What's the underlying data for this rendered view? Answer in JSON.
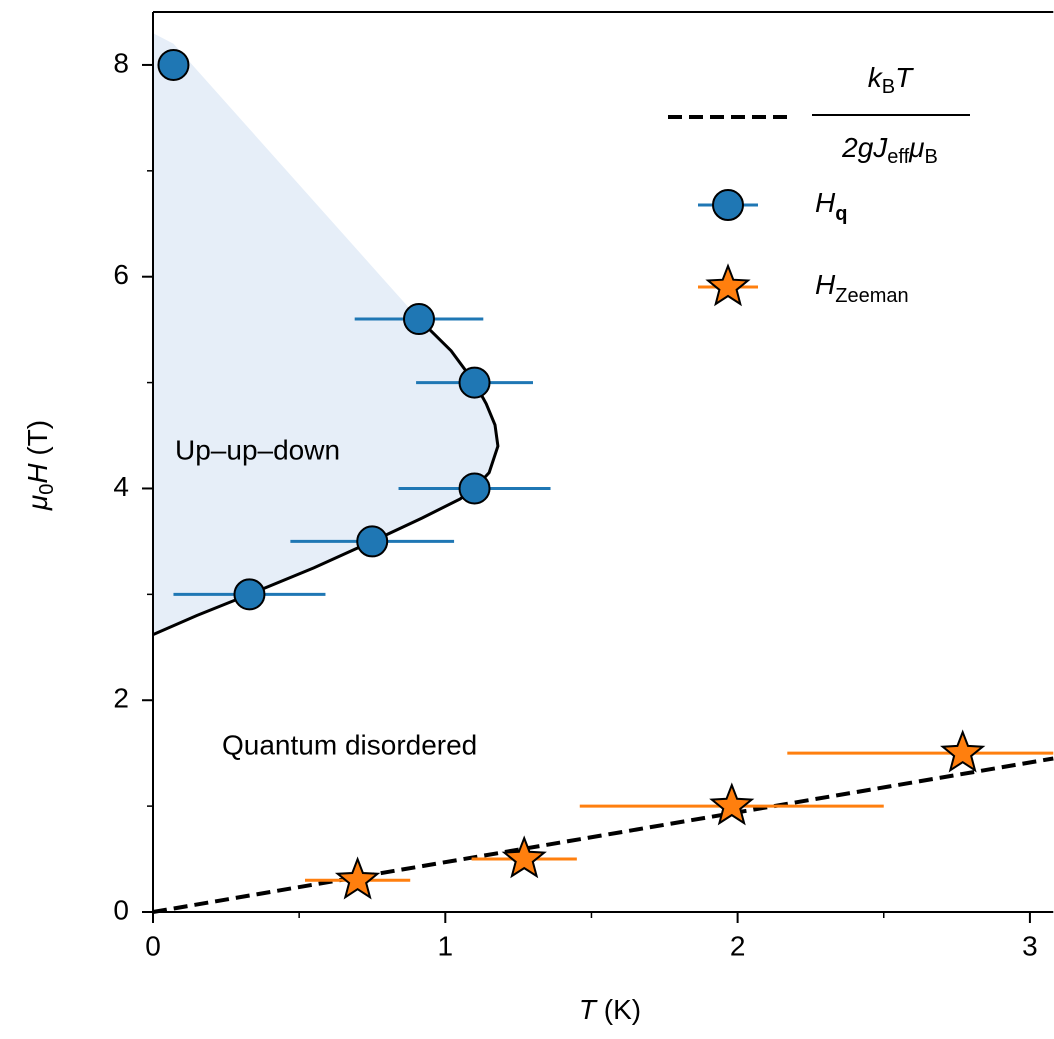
{
  "chart_data": {
    "type": "scatter",
    "xlabel": {
      "main": "T",
      "unit": "(K)"
    },
    "ylabel": {
      "main1": "μ",
      "sub": "0",
      "main2": "H",
      "unit": "(T)"
    },
    "xlim": [
      0,
      3.08
    ],
    "ylim": [
      0,
      8.5
    ],
    "xticks": [
      0,
      1,
      2,
      3
    ],
    "yticks": [
      0,
      2,
      4,
      6,
      8
    ],
    "xminorticks": [
      0.5,
      1.5,
      2.5
    ],
    "yminorticks": [
      1,
      3,
      5,
      7
    ],
    "annotations": [
      "Up–up–down",
      "Quantum disordered"
    ],
    "shade_color": "#e6eef8",
    "boundary": {
      "color": "#000000",
      "x": [
        0,
        0.15,
        0.33,
        0.55,
        0.75,
        0.92,
        1.05,
        1.1,
        1.15,
        1.18,
        1.17,
        1.14,
        1.1,
        1.02,
        0.91
      ],
      "values": [
        2.62,
        2.8,
        3.0,
        3.25,
        3.5,
        3.72,
        3.9,
        4.0,
        4.15,
        4.4,
        4.6,
        4.8,
        5.0,
        5.3,
        5.6
      ]
    },
    "series": [
      {
        "name": {
          "numerator": [
            "k",
            "B",
            "T"
          ],
          "denominator": [
            "2g",
            "J",
            "eff",
            "μ",
            "B"
          ]
        },
        "kind": "dashed-line",
        "color": "#000000",
        "x": [
          0,
          3.08
        ],
        "values": [
          0,
          1.45
        ]
      },
      {
        "name": {
          "main": "H",
          "sub": "q"
        },
        "kind": "circle",
        "color": "#1f77b4",
        "x": [
          0.07,
          0.91,
          1.1,
          1.1,
          0.75,
          0.33
        ],
        "values": [
          8.0,
          5.6,
          5.0,
          4.0,
          3.5,
          3.0
        ],
        "xerr": [
          null,
          0.22,
          0.2,
          0.26,
          0.28,
          0.26
        ]
      },
      {
        "name": {
          "main": "H",
          "sub": "Zeeman"
        },
        "kind": "star",
        "color": "#ff7f0e",
        "x": [
          0.7,
          1.27,
          1.98,
          2.77
        ],
        "values": [
          0.3,
          0.5,
          1.0,
          1.5
        ],
        "xerr": [
          0.18,
          0.18,
          0.52,
          0.6
        ]
      }
    ]
  }
}
